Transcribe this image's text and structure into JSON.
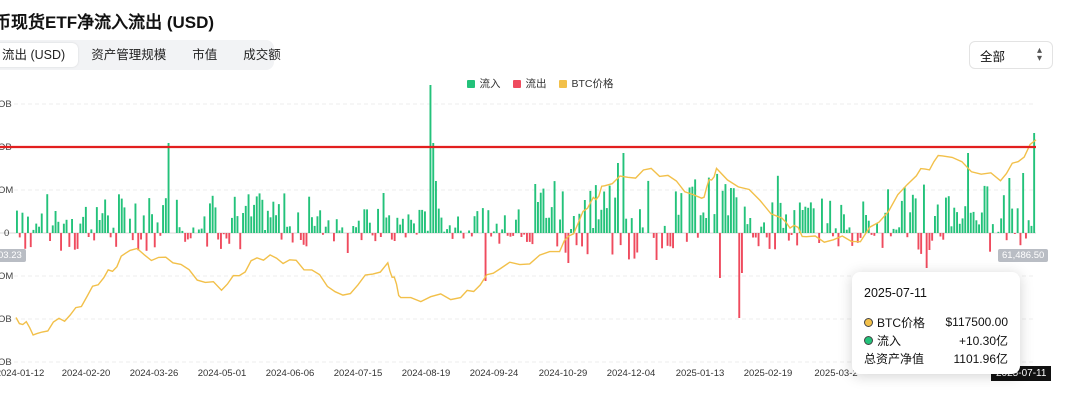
{
  "header": {
    "title": "币现货ETF净流入流出 (USD)"
  },
  "tabs": [
    {
      "label": "流出 (USD)",
      "active": true
    },
    {
      "label": "资产管理规模",
      "active": false
    },
    {
      "label": "市值",
      "active": false
    },
    {
      "label": "成交额",
      "active": false
    }
  ],
  "select": {
    "value": "全部"
  },
  "legend": [
    {
      "label": "流入",
      "color": "#23c27a"
    },
    {
      "label": "流出",
      "color": "#ef4b5e"
    },
    {
      "label": "BTC价格",
      "color": "#f2c04a"
    }
  ],
  "axis": {
    "y_ticks": [
      "OB",
      "OB",
      "OM",
      "0",
      "OM",
      "OB",
      "OB"
    ],
    "x_ticks": [
      "2024-01-12",
      "2024-02-20",
      "2024-03-26",
      "2024-05-01",
      "2024-06-06",
      "2024-07-15",
      "2024-08-19",
      "2024-09-24",
      "2024-10-29",
      "2024-12-04",
      "2025-01-13",
      "2025-02-19",
      "2025-03-2",
      "-07-11"
    ],
    "left_tag": "03.23",
    "right_tag": "61,486.50",
    "hover_date_tag": "2025-07-11"
  },
  "tooltip": {
    "date": "2025-07-11",
    "rows": [
      {
        "label": "BTC价格",
        "value": "$117500.00",
        "color": "#f2c04a"
      },
      {
        "label": "流入",
        "value": "+10.30亿",
        "color": "#23c27a"
      },
      {
        "label": "总资产净值",
        "value": "1101.96亿"
      }
    ]
  },
  "chart_data": {
    "type": "bar",
    "x_range": [
      "2024-01-12",
      "2025-07-11"
    ],
    "reference_line": {
      "color": "#e21f1f"
    },
    "flows_sample_count": 370,
    "flows_shape": "daily net flows, positive green, negative red; largest inflow near 2024-11-07, largest outflow near 2025-02-25",
    "btc_price_points": [
      [
        "2024-01-12",
        46000
      ],
      [
        "2024-01-23",
        39500
      ],
      [
        "2024-02-10",
        47000
      ],
      [
        "2024-02-28",
        62000
      ],
      [
        "2024-03-13",
        73000
      ],
      [
        "2024-04-05",
        68000
      ],
      [
        "2024-05-01",
        57000
      ],
      [
        "2024-05-20",
        70000
      ],
      [
        "2024-06-10",
        69000
      ],
      [
        "2024-07-05",
        55000
      ],
      [
        "2024-07-29",
        68000
      ],
      [
        "2024-08-05",
        54000
      ],
      [
        "2024-09-06",
        54000
      ],
      [
        "2024-09-27",
        65500
      ],
      [
        "2024-10-29",
        72500
      ],
      [
        "2024-11-13",
        90000
      ],
      [
        "2024-11-22",
        99000
      ],
      [
        "2024-12-17",
        106000
      ],
      [
        "2025-01-13",
        94000
      ],
      [
        "2025-01-21",
        106000
      ],
      [
        "2025-02-25",
        86000
      ],
      [
        "2025-03-10",
        78500
      ],
      [
        "2025-04-08",
        76500
      ],
      [
        "2025-05-08",
        103000
      ],
      [
        "2025-05-22",
        111000
      ],
      [
        "2025-06-22",
        101000
      ],
      [
        "2025-07-11",
        117500
      ]
    ]
  }
}
